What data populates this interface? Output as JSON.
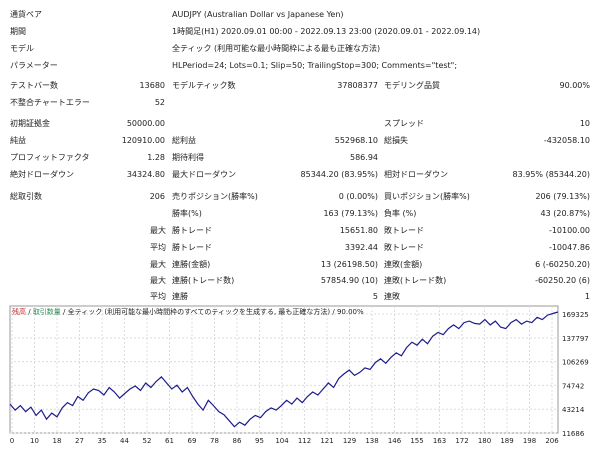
{
  "header": {
    "symbol_label": "通貨ペア",
    "symbol_value": "AUDJPY (Australian Dollar vs Japanese Yen)",
    "period_label": "期間",
    "period_value": "1時間足(H1) 2020.09.01 00:00 - 2022.09.13 23:00 (2020.09.01 - 2022.09.14)",
    "model_label": "モデル",
    "model_value": "全ティック (利用可能な最小時間枠による最も正確な方法)",
    "params_label": "パラメーター",
    "params_value": "HLPeriod=24; Lots=0.1; Slip=50; TrailingStop=300; Comments=\"test\";"
  },
  "stats": {
    "test_bars_label": "テストバー数",
    "test_bars": "13680",
    "model_ticks_label": "モデルティック数",
    "model_ticks": "37808377",
    "model_quality_label": "モデリング品質",
    "model_quality": "90.00%",
    "mismatch_label": "不整合チャートエラー",
    "mismatch": "52",
    "initial_deposit_label": "初期証拠金",
    "initial_deposit": "50000.00",
    "spread_label": "スプレッド",
    "spread": "10",
    "net_profit_label": "純益",
    "net_profit": "120910.00",
    "gross_profit_label": "総利益",
    "gross_profit": "552968.10",
    "gross_loss_label": "総損失",
    "gross_loss": "-432058.10",
    "profit_factor_label": "プロフィットファクタ",
    "profit_factor": "1.28",
    "expected_payoff_label": "期待利得",
    "expected_payoff": "586.94",
    "abs_dd_label": "絶対ドローダウン",
    "abs_dd": "34324.80",
    "max_dd_label": "最大ドローダウン",
    "max_dd": "85344.20 (83.95%)",
    "rel_dd_label": "相対ドローダウン",
    "rel_dd": "83.95% (85344.20)",
    "total_trades_label": "総取引数",
    "total_trades": "206",
    "short_label": "売りポジション(勝率%)",
    "short": "0 (0.00%)",
    "long_label": "買いポジション(勝率%)",
    "long": "206 (79.13%)",
    "win_pct_label": "勝率(%)",
    "win_pct": "163 (79.13%)",
    "loss_pct_label": "負率 (%)",
    "loss_pct": "43 (20.87%)",
    "max_label": "最大",
    "avg_label": "平均",
    "largest_win_label": "勝トレード",
    "largest_win": "15651.80",
    "largest_loss_label": "敗トレード",
    "largest_loss": "-10100.00",
    "avg_win_label": "勝トレード",
    "avg_win": "3392.44",
    "avg_loss_label": "敗トレード",
    "avg_loss": "-10047.86",
    "max_cons_wins_label": "連勝(金額)",
    "max_cons_wins": "13 (26198.50)",
    "max_cons_losses_label": "連敗(金額)",
    "max_cons_losses": "6 (-60250.20)",
    "max_cons_profit_label": "連勝(トレード数)",
    "max_cons_profit": "57854.90 (10)",
    "max_cons_loss_label": "連敗(トレード数)",
    "max_cons_loss": "-60250.20 (6)",
    "avg_cons_wins_label": "連勝",
    "avg_cons_wins": "5",
    "avg_cons_losses_label": "連敗",
    "avg_cons_losses": "1"
  },
  "chart_legend": {
    "balance": "残高",
    "sep1": " / ",
    "lot": "取引数量",
    "sep2": " / ",
    "model": "全ティック (利用可能な最小時間枠のすべてのティックを生成する, 最も正確な方法)",
    "sep3": " / ",
    "quality": "90.00%"
  },
  "colors": {
    "line": "#1c1c8c",
    "grid": "#dcdcdc",
    "legend_balance": "#c03030",
    "legend_lot": "#2e8b57"
  },
  "chart_data": {
    "type": "line",
    "x_ticks": [
      "0",
      "10",
      "18",
      "27",
      "35",
      "44",
      "52",
      "61",
      "69",
      "78",
      "86",
      "95",
      "104",
      "112",
      "121",
      "129",
      "138",
      "146",
      "155",
      "163",
      "172",
      "180",
      "189",
      "198",
      "206"
    ],
    "y_ticks": [
      "169325",
      "137797",
      "106269",
      "74742",
      "43214",
      "11686"
    ],
    "ylim": [
      11686,
      180000
    ],
    "x": [
      0,
      2,
      4,
      6,
      8,
      10,
      12,
      14,
      16,
      18,
      20,
      22,
      24,
      26,
      28,
      30,
      32,
      34,
      36,
      38,
      40,
      42,
      44,
      46,
      48,
      50,
      52,
      54,
      56,
      58,
      60,
      62,
      64,
      66,
      68,
      70,
      72,
      74,
      76,
      78,
      80,
      82,
      84,
      86,
      88,
      90,
      92,
      94,
      96,
      98,
      100,
      102,
      104,
      106,
      108,
      110,
      112,
      114,
      116,
      118,
      120,
      122,
      124,
      126,
      128,
      130,
      132,
      134,
      136,
      138,
      140,
      142,
      144,
      146,
      148,
      150,
      152,
      154,
      156,
      158,
      160,
      162,
      164,
      166,
      168,
      170,
      172,
      174,
      176,
      178,
      180,
      182,
      184,
      186,
      188,
      190,
      192,
      194,
      196,
      198,
      200,
      202,
      204,
      206,
      208,
      210
    ],
    "y": [
      50000,
      42000,
      48000,
      40000,
      46000,
      35000,
      42000,
      30000,
      38000,
      33000,
      45000,
      52000,
      48000,
      60000,
      55000,
      65000,
      70000,
      68000,
      62000,
      72000,
      66000,
      58000,
      64000,
      70000,
      74000,
      68000,
      78000,
      72000,
      80000,
      86000,
      78000,
      70000,
      75000,
      66000,
      72000,
      60000,
      50000,
      42000,
      55000,
      48000,
      40000,
      36000,
      28000,
      20000,
      26000,
      22000,
      30000,
      35000,
      32000,
      40000,
      45000,
      42000,
      48000,
      55000,
      50000,
      58000,
      52000,
      60000,
      66000,
      62000,
      70000,
      78000,
      72000,
      84000,
      90000,
      95000,
      88000,
      92000,
      98000,
      96000,
      105000,
      110000,
      104000,
      112000,
      118000,
      114000,
      125000,
      132000,
      128000,
      136000,
      130000,
      140000,
      145000,
      142000,
      150000,
      155000,
      150000,
      158000,
      160000,
      157000,
      156000,
      162000,
      155000,
      160000,
      152000,
      150000,
      158000,
      162000,
      156000,
      160000,
      158000,
      165000,
      162000,
      168000,
      170000,
      172000
    ]
  }
}
